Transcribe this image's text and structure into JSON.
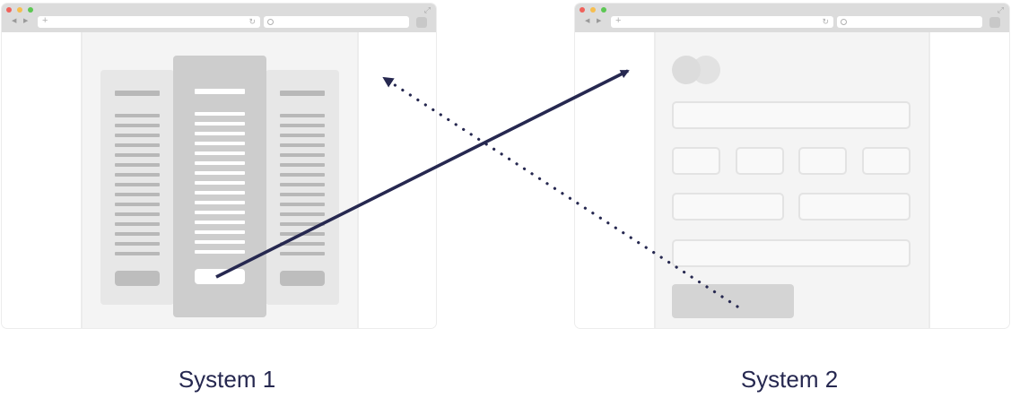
{
  "systems": [
    {
      "caption": "System 1",
      "plus_glyph": "+",
      "reload_glyph": "↻",
      "expand_glyph": "⤢"
    },
    {
      "caption": "System 2",
      "plus_glyph": "+",
      "reload_glyph": "↻",
      "expand_glyph": "⤢"
    }
  ],
  "icons": {
    "back": "◀",
    "forward": "▶",
    "traffic_lights": [
      "close-dot",
      "minimize-dot",
      "maximize-dot"
    ]
  },
  "arrows": [
    {
      "from": "System 1",
      "to": "System 2",
      "style": "solid",
      "color": "#262850"
    },
    {
      "from": "System 2",
      "to": "System 1",
      "style": "dotted",
      "color": "#262850"
    }
  ],
  "colors": {
    "arrow": "#262850",
    "caption": "#262850",
    "traffic_red": "#f0615a",
    "traffic_yellow": "#f6be4f",
    "traffic_green": "#5cc753"
  }
}
